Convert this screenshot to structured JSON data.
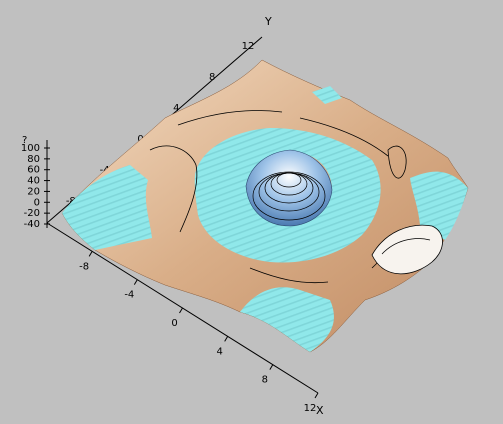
{
  "chart_data": {
    "type": "surface3d",
    "title": "",
    "xlabel": "X",
    "ylabel": "Y",
    "zlabel": "",
    "x_ticks": [
      "-8",
      "-4",
      "0",
      "4",
      "8",
      "12"
    ],
    "y_ticks": [
      "-4",
      "0",
      "4",
      "8",
      "12"
    ],
    "y_ticks_far": [
      "-8"
    ],
    "z_ticks": [
      "-40",
      "-20",
      "0",
      "20",
      "40",
      "60",
      "80",
      "100"
    ],
    "z_extra_top": "?",
    "xlim": [
      -12,
      12
    ],
    "ylim": [
      -12,
      12
    ],
    "zlim": [
      -40,
      100
    ],
    "surface_features": [
      {
        "name": "central-peak",
        "x": 0,
        "y": 0,
        "z_top": 100
      },
      {
        "name": "ring-trough",
        "radius": 6,
        "z": -20
      },
      {
        "name": "corner-basin",
        "x": 10,
        "y": -8,
        "z": -40
      }
    ],
    "colors": {
      "background": "#c0c0c0",
      "surface_high": "#f7e4cf",
      "surface_mid": "#dfb896",
      "surface_low": "#b8805a",
      "clipped": "#90e8ea",
      "peak_blue": "#6aa0d8",
      "contour": "#000000"
    }
  }
}
